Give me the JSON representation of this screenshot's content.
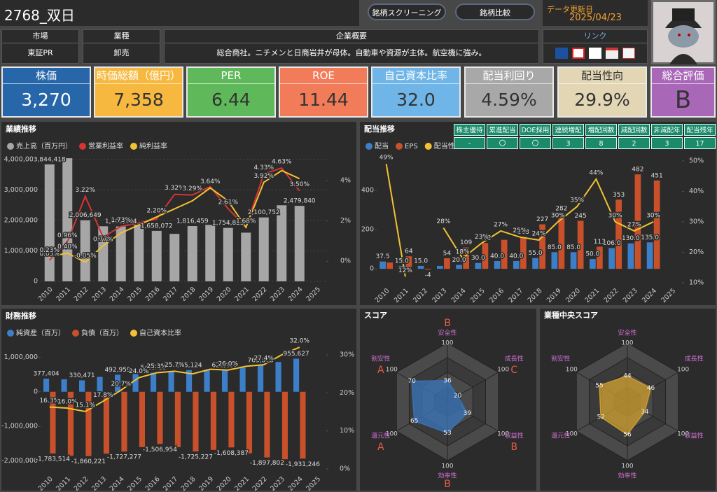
{
  "header": {
    "title": "2768_双日",
    "buttons": [
      "銘柄スクリーニング",
      "銘柄比較"
    ],
    "update_label": "データ更新日",
    "update_date": "2025/04/23"
  },
  "info": {
    "market_label": "市場",
    "market": "東証PR",
    "industry_label": "業種",
    "industry": "卸売",
    "overview_label": "企業概要",
    "overview": "総合商社。ニチメンと日商岩井が母体。自動車や資源が主体。航空機に強み。",
    "link_label": "リンク"
  },
  "kpis": [
    {
      "label": "株価",
      "value": "3,270"
    },
    {
      "label": "時価総額（億円）",
      "value": "7,358"
    },
    {
      "label": "PER",
      "value": "6.44"
    },
    {
      "label": "ROE",
      "value": "11.44"
    },
    {
      "label": "自己資本比率",
      "value": "32.0"
    },
    {
      "label": "配当利回り",
      "value": "4.59%"
    },
    {
      "label": "配当性向",
      "value": "29.9%"
    },
    {
      "label": "総合評価",
      "value": "B"
    }
  ],
  "dividend_table": {
    "headers": [
      "株主優待",
      "累進配当",
      "DOE採用",
      "連続増配",
      "増配回数",
      "減配回数",
      "非減配年",
      "配当残年"
    ],
    "values": [
      "-",
      "〇",
      "〇",
      "3",
      "8",
      "2",
      "3",
      "17"
    ]
  },
  "chart_data": [
    {
      "type": "combo",
      "title": "業績推移",
      "grid": true,
      "categories": [
        "2010",
        "2011",
        "2012",
        "2013",
        "2014",
        "2015",
        "2016",
        "2017",
        "2018",
        "2019",
        "2020",
        "2021",
        "2022",
        "2023",
        "2024",
        "2025"
      ],
      "ylim": [
        0,
        4300000
      ],
      "yticks": [
        0,
        {
          "value": 1000000,
          "label": "1,000,000"
        },
        {
          "value": 2000000,
          "label": "2,000,000"
        },
        {
          "value": 3000000,
          "label": "3,000,000"
        },
        {
          "value": 4000000,
          "label": "4,000,000"
        }
      ],
      "y2lim": [
        -1,
        5.5
      ],
      "y2ticks": [
        {
          "value": 0,
          "label": "0%"
        },
        {
          "value": 2,
          "label": "2%"
        },
        {
          "value": 4,
          "label": "4%"
        }
      ],
      "series": [
        {
          "name": "売上高（百万円）",
          "type": "bar",
          "color": "#a6a6a6",
          "values": [
            3844418,
            4045000,
            2006649,
            1810000,
            1803104,
            1860000,
            1658072,
            1560000,
            1816459,
            1855000,
            1754825,
            1600000,
            2100752,
            2500000,
            2479840,
            null
          ],
          "value_labels": [
            "3,844,418",
            null,
            "2,006,649",
            null,
            "1,803,104",
            null,
            "1,658,072",
            null,
            "1,816,459",
            null,
            "1,754,825",
            null,
            "2,100,752",
            null,
            "2,479,840",
            null
          ]
        },
        {
          "name": "営業利益率",
          "type": "line",
          "axis": "y2",
          "color": "#d83434",
          "values": [
            0.05,
            0.96,
            3.22,
            1.2,
            1.73,
            1.9,
            2.1,
            3.32,
            3.29,
            3.7,
            2.61,
            1.69,
            4.33,
            4.63,
            3.5,
            null
          ],
          "value_labels": [
            "0.05%",
            "0.96%",
            "3.22%",
            null,
            "1.73%",
            null,
            null,
            "3.32%",
            "3.29%",
            null,
            "2.61%",
            "1.69%",
            "4.33%",
            "4.63%",
            "3.50%",
            null
          ]
        },
        {
          "name": "純利益率",
          "type": "line",
          "axis": "y2",
          "color": "#f2c232",
          "values": [
            0.23,
            0.4,
            -0.05,
            0.77,
            1.4,
            1.8,
            2.2,
            2.6,
            3.0,
            3.64,
            3.0,
            1.68,
            3.92,
            4.5,
            4.1,
            null
          ],
          "value_labels": [
            "0.23%",
            "0.40%",
            "-0.05%",
            "0.77%",
            null,
            null,
            "2.20%",
            null,
            null,
            "3.64%",
            null,
            "1.68%",
            "3.92%",
            null,
            null,
            null
          ]
        }
      ]
    },
    {
      "type": "combo",
      "title": "配当推移",
      "grid": false,
      "categories": [
        "2010",
        "2011",
        "2012",
        "2013",
        "2014",
        "2015",
        "2016",
        "2017",
        "2018",
        "2019",
        "2020",
        "2021",
        "2022",
        "2023",
        "2024",
        "2025"
      ],
      "ylim": [
        -71,
        579
      ],
      "yticks": [
        0,
        200,
        400
      ],
      "y2lim": [
        10,
        51.8
      ],
      "y2ticks": [
        {
          "value": 10,
          "label": "10%"
        },
        {
          "value": 20,
          "label": "20%"
        },
        {
          "value": 30,
          "label": "30%"
        },
        {
          "value": 40,
          "label": "40%"
        },
        {
          "value": 50,
          "label": "50%"
        }
      ],
      "series": [
        {
          "name": "配当",
          "type": "bar",
          "color": "#3c7fc8",
          "values": [
            37.5,
            15.0,
            15.0,
            15.0,
            20.0,
            30.0,
            40.0,
            40.0,
            55.0,
            85.0,
            85.0,
            50.0,
            106.0,
            130.0,
            135.0,
            null
          ],
          "value_labels": [
            "37.5",
            "15.0",
            "15.0",
            null,
            "20.0",
            "30.0",
            "40.0",
            "40.0",
            "55.0",
            "85.0",
            "85.0",
            "50.0",
            "106.0",
            "130.0",
            "135.0",
            null
          ]
        },
        {
          "name": "EPS",
          "type": "bar",
          "color": "#c8502a",
          "values": [
            32,
            64,
            -4,
            54,
            109,
            132,
            148,
            163,
            227,
            282,
            245,
            113,
            353,
            482,
            451,
            null
          ],
          "value_labels": [
            null,
            "64",
            "-4",
            "54",
            "109",
            "132",
            null,
            "163",
            "227",
            "282",
            "245",
            "113",
            "353",
            "482",
            "451",
            null
          ]
        },
        {
          "name": "配当性向",
          "type": "line",
          "axis": "y2",
          "color": "#f2c232",
          "values": [
            49,
            12,
            null,
            28,
            18,
            23,
            27,
            25,
            24,
            30,
            35,
            44,
            30,
            27,
            30,
            null
          ],
          "value_labels": [
            "49%",
            "12%",
            null,
            "28%",
            "18%",
            "23%",
            "27%",
            "25%",
            "24%",
            "30%",
            "35%",
            "44%",
            "30%",
            "27%",
            "30%",
            null
          ]
        }
      ]
    },
    {
      "type": "combo",
      "title": "財務推移",
      "grid": false,
      "categories": [
        "2010",
        "2011",
        "2012",
        "2013",
        "2014",
        "2015",
        "2016",
        "2017",
        "2018",
        "2019",
        "2020",
        "2021",
        "2022",
        "2023",
        "2024",
        "2025"
      ],
      "ylim": [
        -2290000,
        1330000
      ],
      "yticks": [
        {
          "value": -2000000,
          "label": "-2,000,000"
        },
        {
          "value": -1000000,
          "label": "-1,000,000"
        },
        0,
        {
          "value": 1000000,
          "label": "1,000,000"
        }
      ],
      "y2lim": [
        -0.55,
        32.4
      ],
      "y2ticks": [
        {
          "value": 0,
          "label": "0%"
        },
        {
          "value": 10,
          "label": "10%"
        },
        {
          "value": 20,
          "label": "20%"
        },
        {
          "value": 30,
          "label": "30%"
        }
      ],
      "series": [
        {
          "name": "純資産（百万）",
          "type": "bar",
          "color": "#3c7fc8",
          "values": [
            377404,
            360000,
            330471,
            430000,
            492959,
            520000,
            549716,
            590000,
            625124,
            640000,
            621898,
            700000,
            763878,
            860000,
            955627,
            null
          ],
          "value_labels": [
            "377,404",
            null,
            "330,471",
            null,
            "492,959",
            null,
            "549,716",
            null,
            "625,124",
            null,
            "621,898",
            null,
            "763,878",
            null,
            "955,627",
            null
          ]
        },
        {
          "name": "負債（百万）",
          "type": "bar",
          "color": "#c8502a",
          "values": [
            -1783514,
            -1850000,
            -1860221,
            -1790000,
            -1727277,
            -1600000,
            -1506954,
            -1600000,
            -1725227,
            -1680000,
            -1608387,
            -1780000,
            -1897802,
            -1950000,
            -1931246,
            null
          ],
          "value_labels": [
            "-1,783,514",
            null,
            "-1,860,221",
            null,
            "-1,727,277",
            null,
            "-1,506,954",
            null,
            "-1,725,227",
            null,
            "-1,608,387",
            null,
            "-1,897,802",
            null,
            "-1,931,246",
            null
          ]
        },
        {
          "name": "自己資本比率",
          "type": "line",
          "axis": "y2",
          "color": "#f2c232",
          "values": [
            16.3,
            16.0,
            15.1,
            17.8,
            20.7,
            24.0,
            25.3,
            25.7,
            25.0,
            26.2,
            26.0,
            27.0,
            27.4,
            30.0,
            32.0,
            null
          ],
          "value_labels": [
            "16.3%",
            "16.0%",
            "15.1%",
            "17.8%",
            "20.7%",
            "24.0%",
            "25.3%",
            "25.7%",
            null,
            null,
            "26.0%",
            null,
            "27.4%",
            null,
            "32.0%",
            null
          ]
        }
      ]
    },
    {
      "type": "radar",
      "title": "スコア",
      "categories": [
        "安全性",
        "成長性",
        "収益性",
        "効率性",
        "還元性",
        "割安性"
      ],
      "values": [
        36,
        20,
        39,
        53,
        65,
        70
      ],
      "grades": [
        "B",
        "C",
        "B",
        "B",
        "A",
        "A"
      ],
      "color": "#3a72b4",
      "rlim": [
        0,
        100
      ],
      "rticks": [
        25,
        50,
        75,
        100
      ]
    },
    {
      "type": "radar",
      "title": "業種中央スコア",
      "categories": [
        "安全性",
        "成長性",
        "収益性",
        "効率性",
        "還元性",
        "割安性"
      ],
      "values": [
        44,
        46,
        34,
        56,
        52,
        55
      ],
      "color": "#c89a30",
      "rlim": [
        0,
        100
      ],
      "rticks": [
        25,
        50,
        75,
        100
      ]
    }
  ]
}
